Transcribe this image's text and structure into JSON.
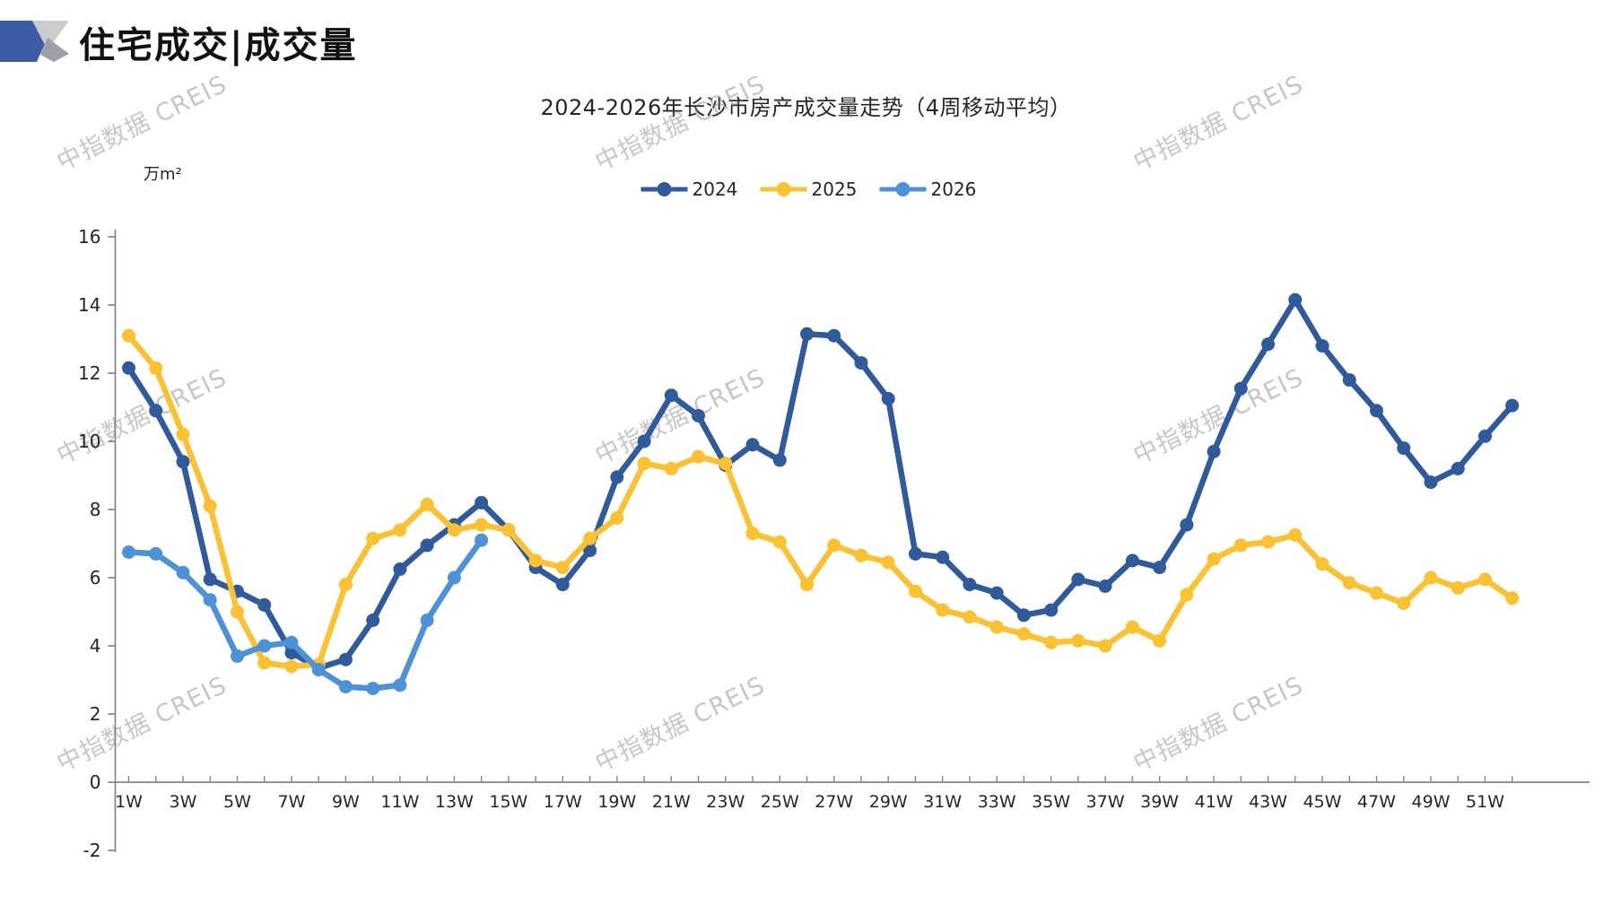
{
  "header": {
    "title": "住宅成交|成交量"
  },
  "watermark": {
    "text": "中指数据 CREIS"
  },
  "logo_colors": {
    "blue": "#3C5CA6",
    "light_gray": "#CBCBCE",
    "mid_gray": "#9EA0A8"
  },
  "chart_data": {
    "type": "line",
    "title": "2024-2026年长沙市房产成交量走势（4周移动平均）",
    "unit_label": "万m²",
    "xlabel": "",
    "ylabel": "万m²",
    "ylim": [
      -2,
      16
    ],
    "x_weeks": 52,
    "grid": false,
    "legend_position": "top-center",
    "axis_color": "#848484",
    "y_ticks": [
      -2,
      0,
      2,
      4,
      6,
      8,
      10,
      12,
      14,
      16
    ],
    "x_tick_labels": [
      "1W",
      "3W",
      "5W",
      "7W",
      "9W",
      "11W",
      "13W",
      "15W",
      "17W",
      "19W",
      "21W",
      "23W",
      "25W",
      "27W",
      "29W",
      "31W",
      "33W",
      "35W",
      "37W",
      "39W",
      "41W",
      "43W",
      "45W",
      "47W",
      "49W",
      "51W"
    ],
    "series": [
      {
        "name": "2024",
        "color": "#2F5B9D",
        "values": [
          12.15,
          10.9,
          9.4,
          5.95,
          5.6,
          5.2,
          3.8,
          3.35,
          3.6,
          4.75,
          6.25,
          6.95,
          7.55,
          8.2,
          7.4,
          6.3,
          5.8,
          6.8,
          8.95,
          10.0,
          11.35,
          10.75,
          9.3,
          9.9,
          9.45,
          13.15,
          13.1,
          12.3,
          11.25,
          6.7,
          6.6,
          5.8,
          5.55,
          4.9,
          5.05,
          5.95,
          5.75,
          6.5,
          6.3,
          7.55,
          9.7,
          11.55,
          12.85,
          14.15,
          12.8,
          11.8,
          10.9,
          9.8,
          8.8,
          9.2,
          10.15,
          11.05
        ]
      },
      {
        "name": "2025",
        "color": "#FCC12E",
        "values": [
          13.1,
          12.15,
          10.2,
          8.1,
          5.0,
          3.5,
          3.4,
          3.45,
          5.8,
          7.15,
          7.4,
          8.15,
          7.4,
          7.55,
          7.4,
          6.5,
          6.3,
          7.15,
          7.75,
          9.35,
          9.2,
          9.55,
          9.35,
          7.3,
          7.05,
          5.8,
          6.95,
          6.65,
          6.45,
          5.6,
          5.05,
          4.85,
          4.55,
          4.35,
          4.1,
          4.15,
          4.0,
          4.55,
          4.15,
          5.5,
          6.55,
          6.95,
          7.05,
          7.25,
          6.4,
          5.85,
          5.55,
          5.25,
          6.0,
          5.7,
          5.95,
          5.4
        ]
      },
      {
        "name": "2026",
        "color": "#4C92D8",
        "values": [
          6.75,
          6.7,
          6.15,
          5.35,
          3.7,
          4.0,
          4.1,
          3.3,
          2.8,
          2.75,
          2.85,
          4.75,
          6.0,
          7.1
        ]
      }
    ]
  }
}
